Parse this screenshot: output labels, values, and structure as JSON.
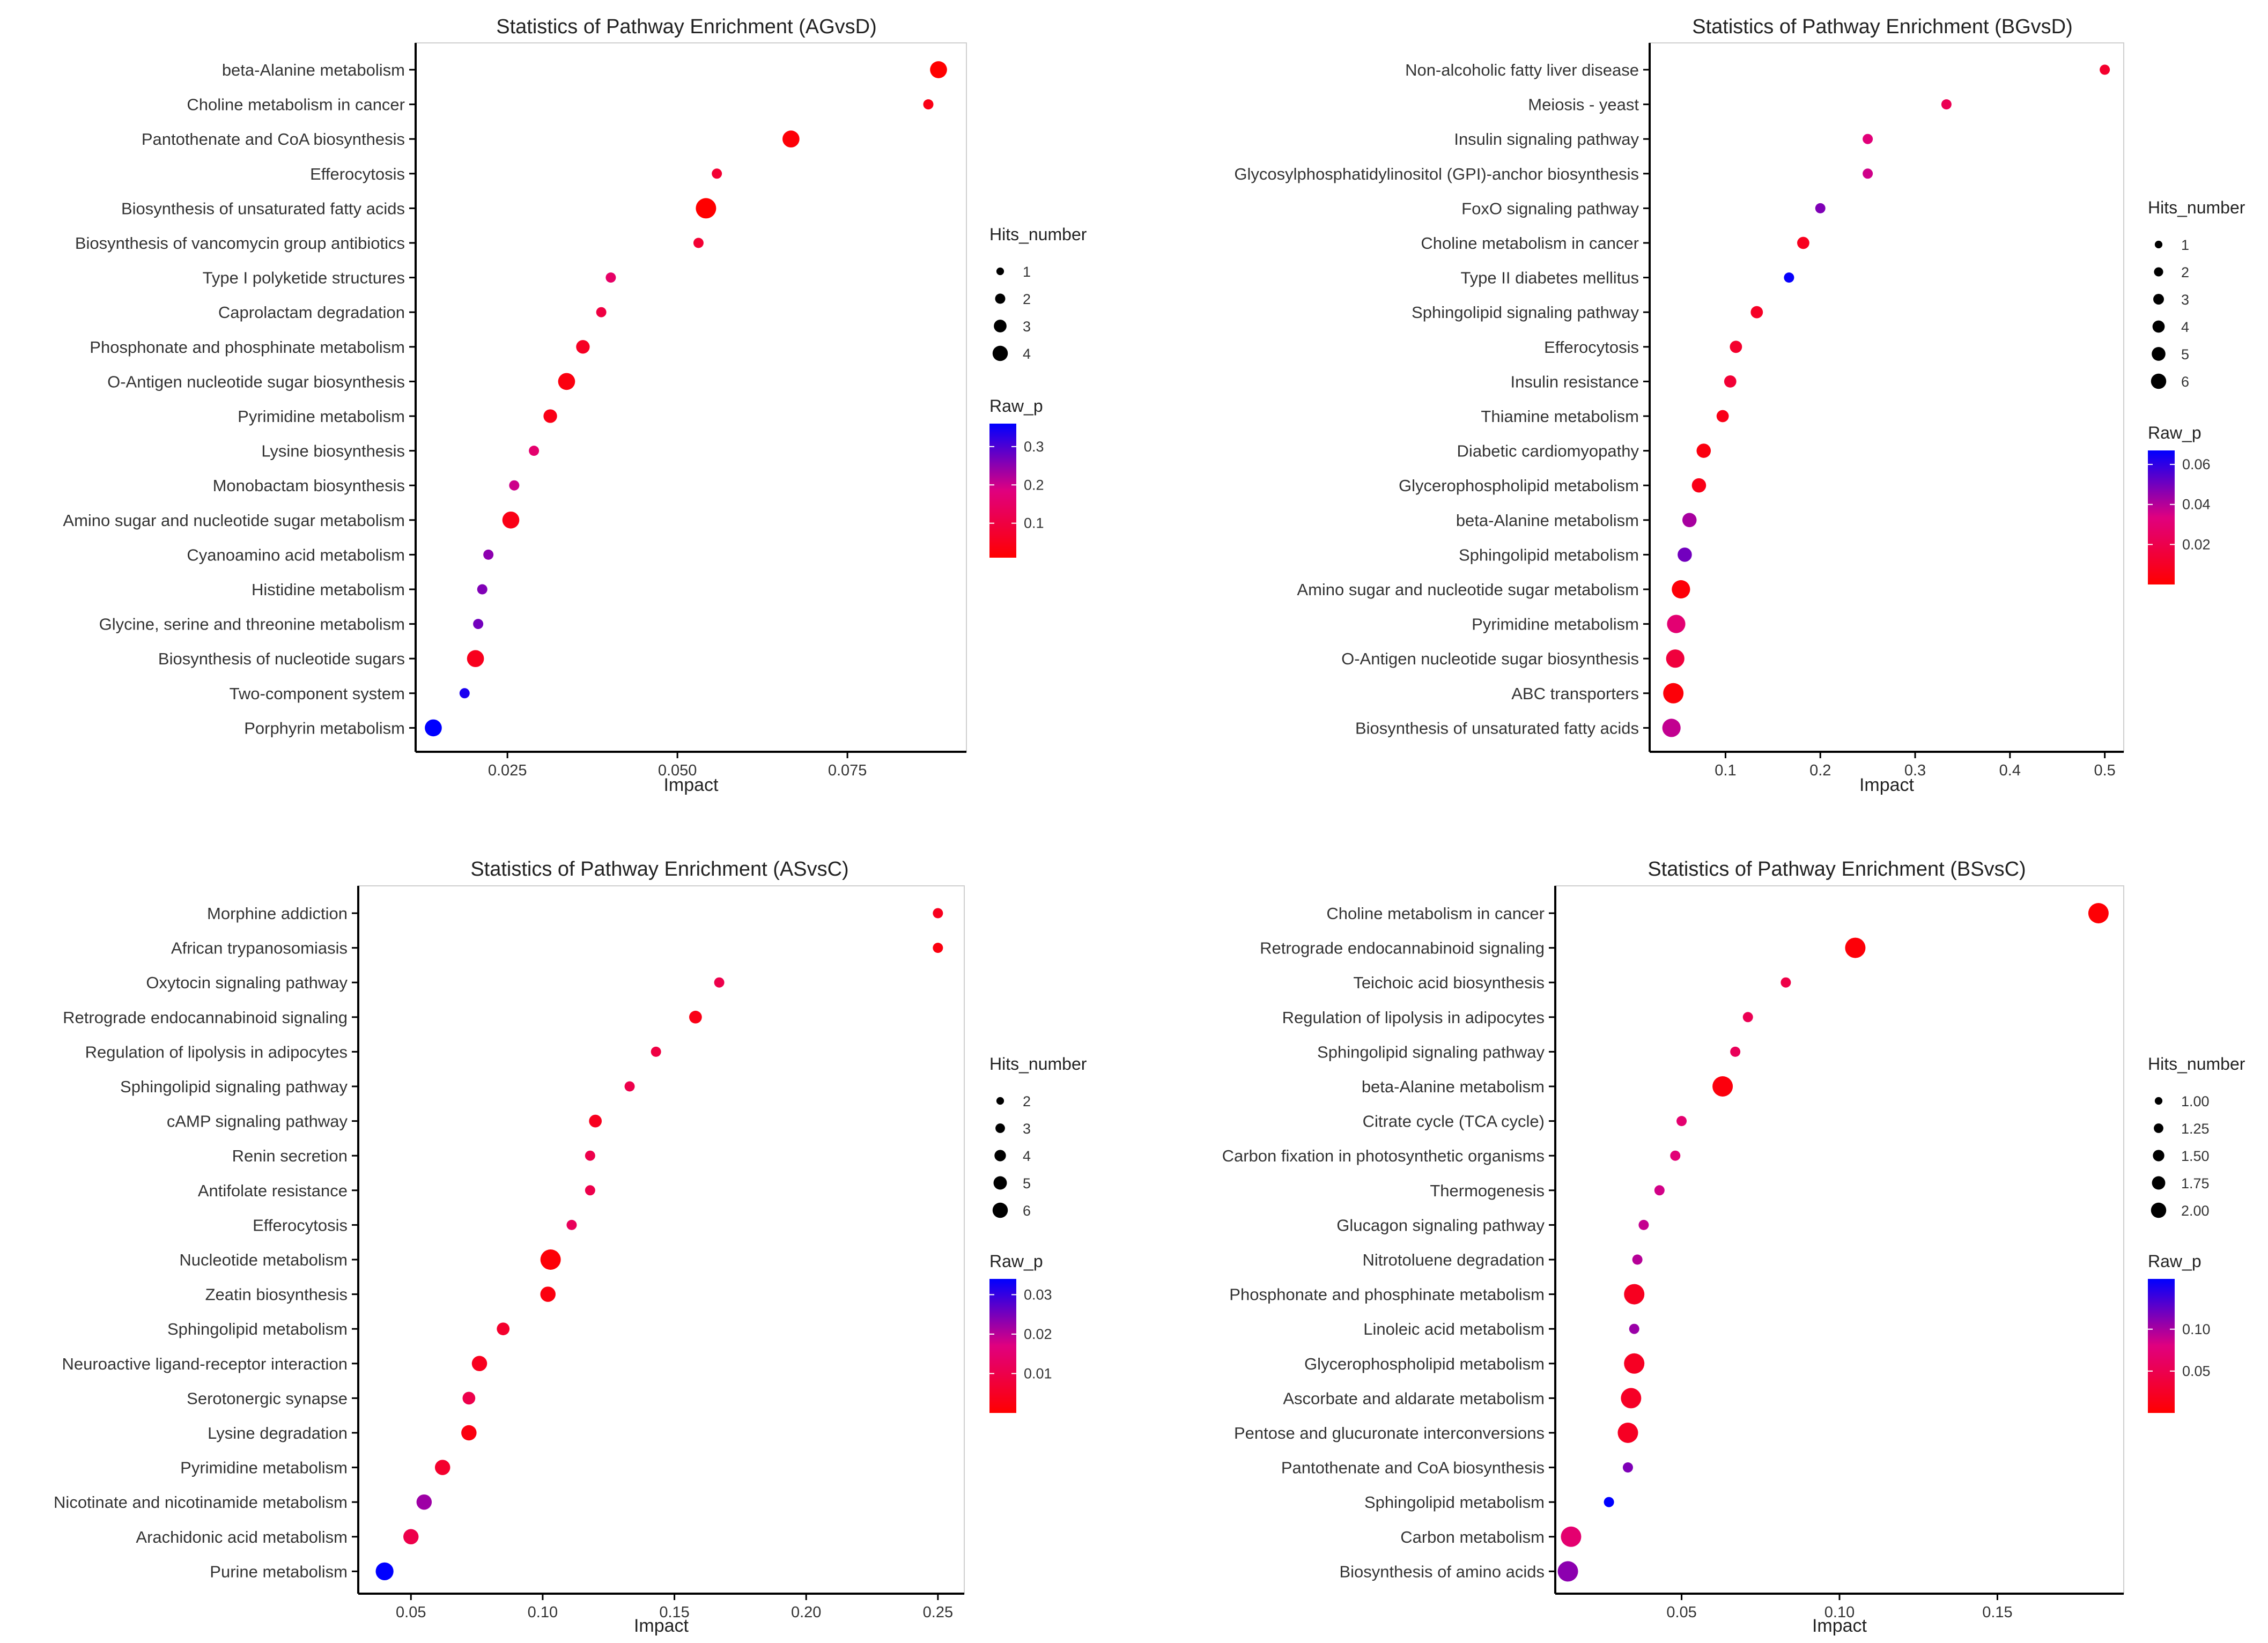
{
  "figure": {
    "colors": {
      "low_p": "#ff0000",
      "mid_p": "#e0007f",
      "high_p": "#0000ff",
      "axis": "#000000",
      "frame": "#cfcfcf"
    },
    "legend": {
      "size_title": "Hits_number",
      "color_title": "Raw_p"
    }
  },
  "chart_data": [
    {
      "type": "scatter",
      "title": "Statistics of Pathway Enrichment (AGvsD)",
      "xlabel": "Impact",
      "xlim": [
        0.0115,
        0.0925
      ],
      "xticks": [
        0.025,
        0.05,
        0.075
      ],
      "xtick_labels": [
        "0.025",
        "0.050",
        "0.075"
      ],
      "size_legend": {
        "values": [
          1,
          2,
          3,
          4
        ],
        "labels": [
          "1",
          "2",
          "3",
          "4"
        ]
      },
      "color_legend": {
        "range": [
          0.01,
          0.36
        ],
        "ticks": [
          0.1,
          0.2,
          0.3
        ],
        "labels": [
          "0.1",
          "0.2",
          "0.3"
        ]
      },
      "points": [
        {
          "pathway": "beta-Alanine metabolism",
          "impact": 0.0884,
          "hits": 3,
          "raw_p": 0.01
        },
        {
          "pathway": "Choline metabolism in cancer",
          "impact": 0.0869,
          "hits": 1,
          "raw_p": 0.04
        },
        {
          "pathway": "Pantothenate and CoA biosynthesis",
          "impact": 0.0667,
          "hits": 3,
          "raw_p": 0.02
        },
        {
          "pathway": "Efferocytosis",
          "impact": 0.0558,
          "hits": 1,
          "raw_p": 0.08
        },
        {
          "pathway": "Biosynthesis of unsaturated fatty acids",
          "impact": 0.0542,
          "hits": 4,
          "raw_p": 0.01
        },
        {
          "pathway": "Biosynthesis of vancomycin group antibiotics",
          "impact": 0.0531,
          "hits": 1,
          "raw_p": 0.08
        },
        {
          "pathway": "Type I polyketide structures",
          "impact": 0.0402,
          "hits": 1,
          "raw_p": 0.15
        },
        {
          "pathway": "Caprolactam degradation",
          "impact": 0.0388,
          "hits": 1,
          "raw_p": 0.1
        },
        {
          "pathway": "Phosphonate and phosphinate metabolism",
          "impact": 0.0361,
          "hits": 2,
          "raw_p": 0.06
        },
        {
          "pathway": "O-Antigen nucleotide sugar biosynthesis",
          "impact": 0.0337,
          "hits": 3,
          "raw_p": 0.03
        },
        {
          "pathway": "Pyrimidine metabolism",
          "impact": 0.0313,
          "hits": 2,
          "raw_p": 0.04
        },
        {
          "pathway": "Lysine biosynthesis",
          "impact": 0.0289,
          "hits": 1,
          "raw_p": 0.16
        },
        {
          "pathway": "Monobactam biosynthesis",
          "impact": 0.026,
          "hits": 1,
          "raw_p": 0.2
        },
        {
          "pathway": "Amino sugar and nucleotide sugar metabolism",
          "impact": 0.0255,
          "hits": 3,
          "raw_p": 0.04
        },
        {
          "pathway": "Cyanoamino acid metabolism",
          "impact": 0.0222,
          "hits": 1,
          "raw_p": 0.25
        },
        {
          "pathway": "Histidine metabolism",
          "impact": 0.0213,
          "hits": 1,
          "raw_p": 0.26
        },
        {
          "pathway": "Glycine, serine and threonine metabolism",
          "impact": 0.0207,
          "hits": 1,
          "raw_p": 0.27
        },
        {
          "pathway": "Biosynthesis of nucleotide sugars",
          "impact": 0.0203,
          "hits": 3,
          "raw_p": 0.05
        },
        {
          "pathway": "Two-component system",
          "impact": 0.0187,
          "hits": 1,
          "raw_p": 0.34
        },
        {
          "pathway": "Porphyrin metabolism",
          "impact": 0.0141,
          "hits": 3,
          "raw_p": 0.36
        }
      ]
    },
    {
      "type": "scatter",
      "title": "Statistics of Pathway Enrichment (BGvsD)",
      "xlabel": "Impact",
      "xlim": [
        0.02,
        0.52
      ],
      "xticks": [
        0.1,
        0.2,
        0.3,
        0.4,
        0.5
      ],
      "xtick_labels": [
        "0.1",
        "0.2",
        "0.3",
        "0.4",
        "0.5"
      ],
      "size_legend": {
        "values": [
          1,
          2,
          3,
          4,
          5,
          6
        ],
        "labels": [
          "1",
          "2",
          "3",
          "4",
          "5",
          "6"
        ]
      },
      "color_legend": {
        "range": [
          0.0,
          0.067
        ],
        "ticks": [
          0.02,
          0.04,
          0.06
        ],
        "labels": [
          "0.02",
          "0.04",
          "0.06"
        ]
      },
      "points": [
        {
          "pathway": "Non-alcoholic fatty liver disease",
          "impact": 0.5,
          "hits": 1,
          "raw_p": 0.012
        },
        {
          "pathway": "Meiosis - yeast",
          "impact": 0.333,
          "hits": 1,
          "raw_p": 0.022
        },
        {
          "pathway": "Insulin signaling pathway",
          "impact": 0.25,
          "hits": 1,
          "raw_p": 0.032
        },
        {
          "pathway": "Glycosylphosphatidylinositol (GPI)-anchor biosynthesis",
          "impact": 0.25,
          "hits": 1,
          "raw_p": 0.036
        },
        {
          "pathway": "FoxO signaling pathway",
          "impact": 0.2,
          "hits": 1,
          "raw_p": 0.048
        },
        {
          "pathway": "Choline metabolism in cancer",
          "impact": 0.182,
          "hits": 2,
          "raw_p": 0.008
        },
        {
          "pathway": "Type II diabetes mellitus",
          "impact": 0.167,
          "hits": 1,
          "raw_p": 0.066
        },
        {
          "pathway": "Sphingolipid signaling pathway",
          "impact": 0.133,
          "hits": 2,
          "raw_p": 0.01
        },
        {
          "pathway": "Efferocytosis",
          "impact": 0.111,
          "hits": 2,
          "raw_p": 0.012
        },
        {
          "pathway": "Insulin resistance",
          "impact": 0.105,
          "hits": 2,
          "raw_p": 0.014
        },
        {
          "pathway": "Thiamine metabolism",
          "impact": 0.097,
          "hits": 2,
          "raw_p": 0.006
        },
        {
          "pathway": "Diabetic cardiomyopathy",
          "impact": 0.077,
          "hits": 3,
          "raw_p": 0.004
        },
        {
          "pathway": "Glycerophospholipid metabolism",
          "impact": 0.072,
          "hits": 3,
          "raw_p": 0.006
        },
        {
          "pathway": "beta-Alanine metabolism",
          "impact": 0.062,
          "hits": 3,
          "raw_p": 0.042
        },
        {
          "pathway": "Sphingolipid metabolism",
          "impact": 0.057,
          "hits": 3,
          "raw_p": 0.05
        },
        {
          "pathway": "Amino sugar and nucleotide sugar metabolism",
          "impact": 0.053,
          "hits": 5,
          "raw_p": 0.002
        },
        {
          "pathway": "Pyrimidine metabolism",
          "impact": 0.048,
          "hits": 5,
          "raw_p": 0.03
        },
        {
          "pathway": "O-Antigen nucleotide sugar biosynthesis",
          "impact": 0.047,
          "hits": 5,
          "raw_p": 0.016
        },
        {
          "pathway": "ABC transporters",
          "impact": 0.045,
          "hits": 6,
          "raw_p": 0.002
        },
        {
          "pathway": "Biosynthesis of unsaturated fatty acids",
          "impact": 0.043,
          "hits": 5,
          "raw_p": 0.038
        }
      ]
    },
    {
      "type": "scatter",
      "title": "Statistics of Pathway Enrichment (ASvsC)",
      "xlabel": "Impact",
      "xlim": [
        0.03,
        0.26
      ],
      "xticks": [
        0.05,
        0.1,
        0.15,
        0.2,
        0.25
      ],
      "xtick_labels": [
        "0.05",
        "0.10",
        "0.15",
        "0.20",
        "0.25"
      ],
      "size_legend": {
        "values": [
          2,
          3,
          4,
          5,
          6
        ],
        "labels": [
          "2",
          "3",
          "4",
          "5",
          "6"
        ]
      },
      "color_legend": {
        "range": [
          0.0,
          0.034
        ],
        "ticks": [
          0.01,
          0.02,
          0.03
        ],
        "labels": [
          "0.01",
          "0.02",
          "0.03"
        ]
      },
      "points": [
        {
          "pathway": "Morphine addiction",
          "impact": 0.25,
          "hits": 2,
          "raw_p": 0.004
        },
        {
          "pathway": "African trypanosomiasis",
          "impact": 0.25,
          "hits": 2,
          "raw_p": 0.002
        },
        {
          "pathway": "Oxytocin signaling pathway",
          "impact": 0.167,
          "hits": 2,
          "raw_p": 0.01
        },
        {
          "pathway": "Retrograde endocannabinoid signaling",
          "impact": 0.158,
          "hits": 3,
          "raw_p": 0.003
        },
        {
          "pathway": "Regulation of lipolysis in adipocytes",
          "impact": 0.143,
          "hits": 2,
          "raw_p": 0.009
        },
        {
          "pathway": "Sphingolipid signaling pathway",
          "impact": 0.133,
          "hits": 2,
          "raw_p": 0.01
        },
        {
          "pathway": "cAMP signaling pathway",
          "impact": 0.12,
          "hits": 3,
          "raw_p": 0.004
        },
        {
          "pathway": "Renin secretion",
          "impact": 0.118,
          "hits": 2,
          "raw_p": 0.01
        },
        {
          "pathway": "Antifolate resistance",
          "impact": 0.118,
          "hits": 2,
          "raw_p": 0.01
        },
        {
          "pathway": "Efferocytosis",
          "impact": 0.111,
          "hits": 2,
          "raw_p": 0.012
        },
        {
          "pathway": "Nucleotide metabolism",
          "impact": 0.103,
          "hits": 6,
          "raw_p": 0.001
        },
        {
          "pathway": "Zeatin biosynthesis",
          "impact": 0.102,
          "hits": 4,
          "raw_p": 0.002
        },
        {
          "pathway": "Sphingolipid metabolism",
          "impact": 0.085,
          "hits": 3,
          "raw_p": 0.006
        },
        {
          "pathway": "Neuroactive ligand-receptor interaction",
          "impact": 0.076,
          "hits": 4,
          "raw_p": 0.004
        },
        {
          "pathway": "Serotonergic synapse",
          "impact": 0.072,
          "hits": 3,
          "raw_p": 0.01
        },
        {
          "pathway": "Lysine degradation",
          "impact": 0.072,
          "hits": 4,
          "raw_p": 0.002
        },
        {
          "pathway": "Pyrimidine metabolism",
          "impact": 0.062,
          "hits": 4,
          "raw_p": 0.006
        },
        {
          "pathway": "Nicotinate and nicotinamide metabolism",
          "impact": 0.055,
          "hits": 4,
          "raw_p": 0.022
        },
        {
          "pathway": "Arachidonic acid metabolism",
          "impact": 0.05,
          "hits": 4,
          "raw_p": 0.01
        },
        {
          "pathway": "Purine metabolism",
          "impact": 0.04,
          "hits": 5,
          "raw_p": 0.034
        }
      ]
    },
    {
      "type": "scatter",
      "title": "Statistics of Pathway Enrichment (BSvsC)",
      "xlabel": "Impact",
      "xlim": [
        0.01,
        0.19
      ],
      "xticks": [
        0.05,
        0.1,
        0.15
      ],
      "xtick_labels": [
        "0.05",
        "0.10",
        "0.15"
      ],
      "size_legend": {
        "values": [
          1.0,
          1.25,
          1.5,
          1.75,
          2.0
        ],
        "labels": [
          "1.00",
          "1.25",
          "1.50",
          "1.75",
          "2.00"
        ]
      },
      "color_legend": {
        "range": [
          0.0,
          0.16
        ],
        "ticks": [
          0.05,
          0.1
        ],
        "labels": [
          "0.05",
          "0.10"
        ]
      },
      "points": [
        {
          "pathway": "Choline metabolism in cancer",
          "impact": 0.182,
          "hits": 2,
          "raw_p": 0.003
        },
        {
          "pathway": "Retrograde endocannabinoid signaling",
          "impact": 0.105,
          "hits": 2,
          "raw_p": 0.005
        },
        {
          "pathway": "Teichoic acid biosynthesis",
          "impact": 0.083,
          "hits": 1,
          "raw_p": 0.045
        },
        {
          "pathway": "Regulation of lipolysis in adipocytes",
          "impact": 0.071,
          "hits": 1,
          "raw_p": 0.052
        },
        {
          "pathway": "Sphingolipid signaling pathway",
          "impact": 0.067,
          "hits": 1,
          "raw_p": 0.056
        },
        {
          "pathway": "beta-Alanine metabolism",
          "impact": 0.063,
          "hits": 2,
          "raw_p": 0.008
        },
        {
          "pathway": "Citrate cycle (TCA cycle)",
          "impact": 0.05,
          "hits": 1,
          "raw_p": 0.07
        },
        {
          "pathway": "Carbon fixation in photosynthetic organisms",
          "impact": 0.048,
          "hits": 1,
          "raw_p": 0.075
        },
        {
          "pathway": "Thermogenesis",
          "impact": 0.043,
          "hits": 1,
          "raw_p": 0.085
        },
        {
          "pathway": "Glucagon signaling pathway",
          "impact": 0.038,
          "hits": 1,
          "raw_p": 0.09
        },
        {
          "pathway": "Nitrotoluene degradation",
          "impact": 0.036,
          "hits": 1,
          "raw_p": 0.095
        },
        {
          "pathway": "Phosphonate and phosphinate metabolism",
          "impact": 0.035,
          "hits": 2,
          "raw_p": 0.02
        },
        {
          "pathway": "Linoleic acid metabolism",
          "impact": 0.035,
          "hits": 1,
          "raw_p": 0.105
        },
        {
          "pathway": "Glycerophospholipid metabolism",
          "impact": 0.035,
          "hits": 2,
          "raw_p": 0.022
        },
        {
          "pathway": "Ascorbate and aldarate metabolism",
          "impact": 0.034,
          "hits": 2,
          "raw_p": 0.024
        },
        {
          "pathway": "Pentose and glucuronate interconversions",
          "impact": 0.033,
          "hits": 2,
          "raw_p": 0.022
        },
        {
          "pathway": "Pantothenate and CoA biosynthesis",
          "impact": 0.033,
          "hits": 1,
          "raw_p": 0.115
        },
        {
          "pathway": "Sphingolipid metabolism",
          "impact": 0.027,
          "hits": 1,
          "raw_p": 0.16
        },
        {
          "pathway": "Carbon metabolism",
          "impact": 0.015,
          "hits": 2,
          "raw_p": 0.07
        },
        {
          "pathway": "Biosynthesis of amino acids",
          "impact": 0.014,
          "hits": 2,
          "raw_p": 0.11
        }
      ]
    }
  ]
}
